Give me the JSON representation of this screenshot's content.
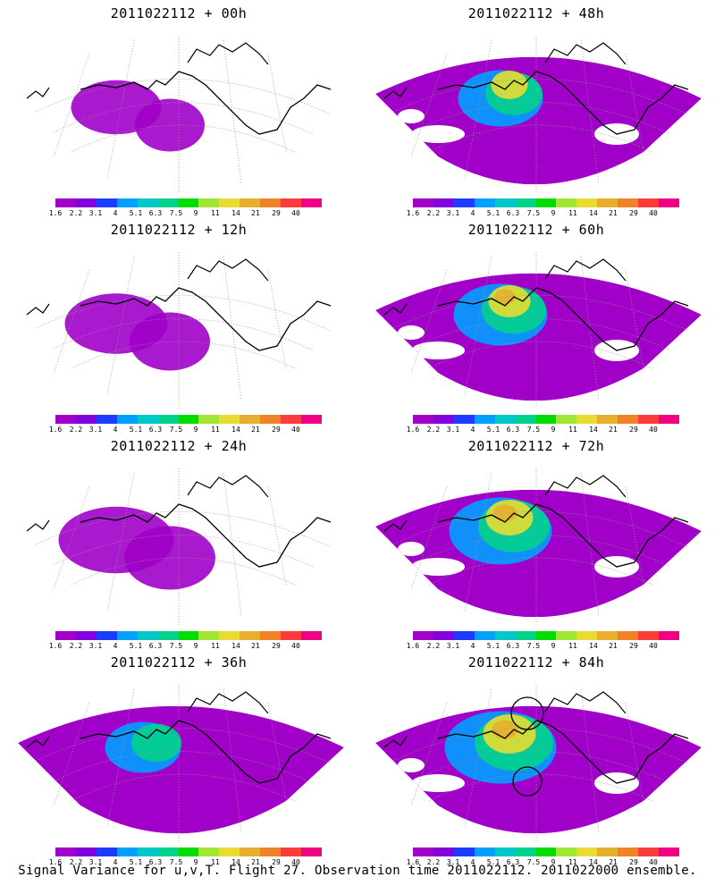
{
  "footer": "Signal Variance for u,v,T. Flight 27. Observation time 2011022112. 2011022000 ensemble.",
  "colorbar": {
    "labels": [
      "1.6",
      "2.2",
      "3.1",
      "4",
      "5.1",
      "6.3",
      "7.5",
      "9",
      "11",
      "14",
      "21",
      "29",
      "40"
    ],
    "colors": [
      "#a000c8",
      "#8200dc",
      "#1e3cff",
      "#00a0ff",
      "#00c8c8",
      "#00d28c",
      "#00dc00",
      "#a0e632",
      "#e6dc32",
      "#e6af2d",
      "#f08228",
      "#fa3c3c",
      "#f00082"
    ]
  },
  "panels": [
    {
      "title": "2011022112 + 00h",
      "level": 0.15
    },
    {
      "title": "2011022112 + 48h",
      "level": 0.55
    },
    {
      "title": "2011022112 + 12h",
      "level": 0.25
    },
    {
      "title": "2011022112 + 60h",
      "level": 0.65
    },
    {
      "title": "2011022112 + 24h",
      "level": 0.35
    },
    {
      "title": "2011022112 + 72h",
      "level": 0.75
    },
    {
      "title": "2011022112 + 36h",
      "level": 0.45
    },
    {
      "title": "2011022112 + 84h",
      "level": 0.85
    }
  ]
}
